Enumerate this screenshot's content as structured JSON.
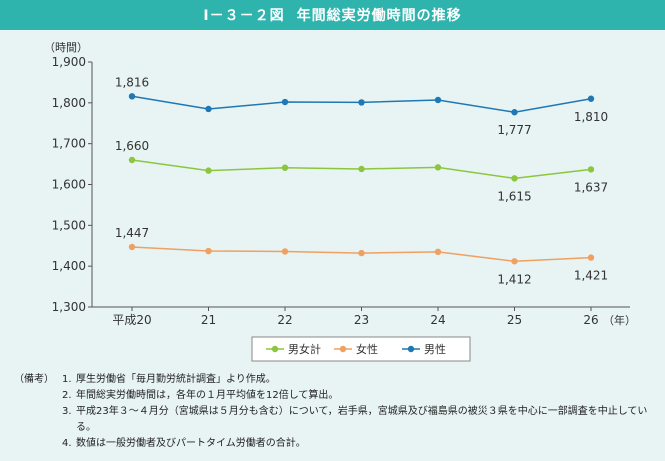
{
  "header": {
    "figure_number": "Ⅰ－３－２図",
    "title": "年間総実労働時間の推移"
  },
  "chart_data": {
    "type": "line",
    "ylabel": "（時間）",
    "xlabel": "（年）",
    "ylim": [
      1300,
      1900
    ],
    "yticks": [
      1300,
      1400,
      1500,
      1600,
      1700,
      1800,
      1900
    ],
    "ytick_labels": [
      "1,300",
      "1,400",
      "1,500",
      "1,600",
      "1,700",
      "1,800",
      "1,900"
    ],
    "categories": [
      "平成20",
      "21",
      "22",
      "23",
      "24",
      "25",
      "26"
    ],
    "grid": false,
    "legend_position": "bottom",
    "series": [
      {
        "name": "男性",
        "color": "#1f77b4",
        "values": [
          1816,
          1785,
          1802,
          1801,
          1807,
          1777,
          1810
        ],
        "labels": [
          "1,816",
          "",
          "",
          "",
          "",
          "1,777",
          "1,810"
        ]
      },
      {
        "name": "男女計",
        "color": "#8cc63f",
        "values": [
          1660,
          1634,
          1641,
          1638,
          1642,
          1615,
          1637
        ],
        "labels": [
          "1,660",
          "",
          "",
          "",
          "",
          "1,615",
          "1,637"
        ]
      },
      {
        "name": "女性",
        "color": "#f0a060",
        "values": [
          1447,
          1437,
          1436,
          1432,
          1435,
          1412,
          1421
        ],
        "labels": [
          "1,447",
          "",
          "",
          "",
          "",
          "1,412",
          "1,421"
        ]
      }
    ],
    "legend": [
      "男女計",
      "女性",
      "男性"
    ]
  },
  "notes": {
    "prefix": "（備考）",
    "items": [
      {
        "num": "1.",
        "text": "厚生労働省「毎月勤労統計調査」より作成。"
      },
      {
        "num": "2.",
        "text": "年間総実労働時間は，各年の１月平均値を12倍して算出。"
      },
      {
        "num": "3.",
        "text": "平成23年３～４月分（宮城県は５月分も含む）について，岩手県，宮城県及び福島県の被災３県を中心に一部調査を中止している。"
      },
      {
        "num": "4.",
        "text": "数値は一般労働者及びパートタイム労働者の合計。"
      }
    ]
  }
}
